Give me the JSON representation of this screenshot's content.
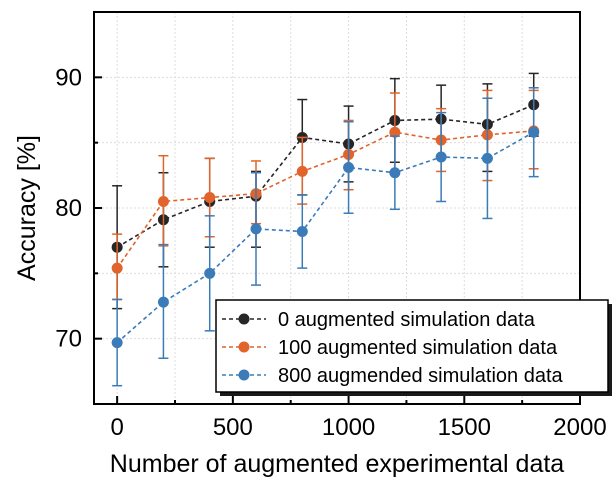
{
  "chart_data": {
    "type": "line",
    "title": "",
    "xlabel": "Number of augmented experimental data",
    "ylabel": "Accuracy [%]",
    "xlim": [
      -100,
      2000
    ],
    "ylim": [
      65,
      95
    ],
    "xticks": [
      0,
      500,
      1000,
      1500,
      2000
    ],
    "yticks": [
      70,
      80,
      90
    ],
    "xtick_labels": [
      "0",
      "500",
      "1000",
      "1500",
      "2000"
    ],
    "ytick_labels": [
      "70",
      "80",
      "90"
    ],
    "grid": true,
    "legend_position": "bottom-right",
    "x": [
      0,
      200,
      400,
      600,
      800,
      1000,
      1200,
      1400,
      1600,
      1800
    ],
    "series": [
      {
        "name": "0 augmented simulation data",
        "color": "#262626",
        "values": [
          77.0,
          79.1,
          80.5,
          80.9,
          85.4,
          84.9,
          86.7,
          86.8,
          86.4,
          87.9
        ],
        "err_low": [
          72.3,
          75.5,
          77.0,
          77.0,
          81.0,
          82.0,
          83.5,
          84.0,
          82.8,
          85.5
        ],
        "err_high": [
          81.7,
          82.7,
          83.8,
          82.8,
          88.3,
          87.8,
          89.9,
          89.4,
          89.5,
          90.3
        ]
      },
      {
        "name": "100 augmented simulation data",
        "color": "#e0642b",
        "values": [
          75.4,
          80.5,
          80.8,
          81.1,
          82.8,
          84.1,
          85.8,
          85.2,
          85.6,
          85.9
        ],
        "err_low": [
          73.0,
          77.1,
          77.8,
          78.8,
          80.3,
          81.4,
          82.8,
          82.8,
          82.1,
          83.0
        ],
        "err_high": [
          78.0,
          84.0,
          83.8,
          83.6,
          85.4,
          86.7,
          88.8,
          87.6,
          89.0,
          89.0
        ]
      },
      {
        "name": "800 augmended simulation data",
        "color": "#3b7bb8",
        "values": [
          69.7,
          72.8,
          75.0,
          78.4,
          78.2,
          83.1,
          82.7,
          83.9,
          83.8,
          85.8
        ],
        "err_low": [
          66.4,
          68.5,
          70.6,
          74.1,
          75.4,
          79.6,
          79.9,
          80.5,
          79.2,
          82.4
        ],
        "err_high": [
          73.0,
          77.2,
          79.4,
          82.7,
          81.0,
          86.6,
          85.5,
          87.3,
          88.4,
          89.2
        ]
      }
    ]
  }
}
